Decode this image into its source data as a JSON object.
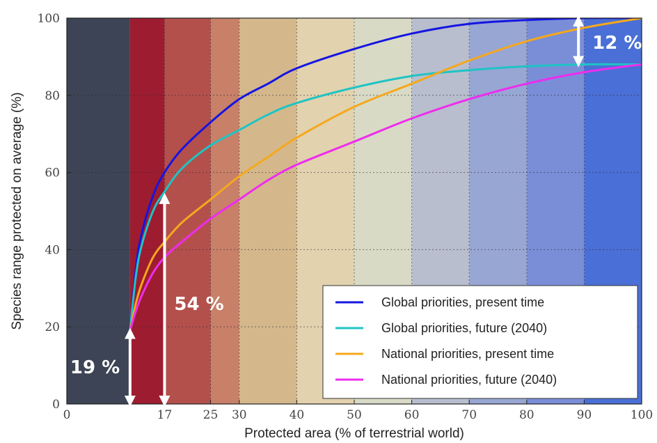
{
  "chart_data": {
    "type": "line",
    "xlabel": "Protected area (% of terrestrial world)",
    "ylabel": "Species range protected on average (%)",
    "xlim": [
      0,
      100
    ],
    "ylim": [
      0,
      100
    ],
    "x_ticks": [
      {
        "value": 0,
        "label": "0"
      },
      {
        "value": 17,
        "label": "17"
      },
      {
        "value": 25,
        "label": "25"
      },
      {
        "value": 30,
        "label": "30"
      },
      {
        "value": 40,
        "label": "40"
      },
      {
        "value": 50,
        "label": "50"
      },
      {
        "value": 60,
        "label": "60"
      },
      {
        "value": 70,
        "label": "70"
      },
      {
        "value": 80,
        "label": "80"
      },
      {
        "value": 90,
        "label": "90"
      },
      {
        "value": 100,
        "label": "100"
      }
    ],
    "y_ticks": [
      {
        "value": 0,
        "label": "0"
      },
      {
        "value": 20,
        "label": "20"
      },
      {
        "value": 40,
        "label": "40"
      },
      {
        "value": 60,
        "label": "60"
      },
      {
        "value": 80,
        "label": "80"
      },
      {
        "value": 100,
        "label": "100"
      }
    ],
    "grid": true,
    "legend_position": "bottom-right",
    "background_bands": [
      {
        "x0": 0,
        "x1": 11,
        "color": "#3d4455"
      },
      {
        "x0": 11,
        "x1": 17,
        "color": "#9e1c30"
      },
      {
        "x0": 17,
        "x1": 25,
        "color": "#b4504c"
      },
      {
        "x0": 25,
        "x1": 30,
        "color": "#c88068"
      },
      {
        "x0": 30,
        "x1": 40,
        "color": "#d4b88c"
      },
      {
        "x0": 40,
        "x1": 50,
        "color": "#e2d2ae"
      },
      {
        "x0": 50,
        "x1": 60,
        "color": "#d8dac6"
      },
      {
        "x0": 60,
        "x1": 70,
        "color": "#b8bece"
      },
      {
        "x0": 70,
        "x1": 80,
        "color": "#98a6d4"
      },
      {
        "x0": 80,
        "x1": 90,
        "color": "#7a8ed8"
      },
      {
        "x0": 90,
        "x1": 100,
        "color": "#4a6fd6"
      }
    ],
    "series": [
      {
        "name": "Global priorities, present time",
        "color": "#1515e0",
        "x": [
          11,
          12,
          13,
          15,
          17,
          20,
          25,
          30,
          35,
          40,
          50,
          60,
          70,
          80,
          90,
          100
        ],
        "y": [
          19,
          35,
          44,
          54,
          60,
          66,
          73,
          79,
          83,
          87,
          92,
          96,
          98.5,
          99.5,
          100,
          100
        ]
      },
      {
        "name": "Global priorities, future (2040)",
        "color": "#1ec4c4",
        "x": [
          11,
          12,
          13,
          15,
          17,
          20,
          25,
          30,
          35,
          40,
          50,
          60,
          70,
          80,
          90,
          100
        ],
        "y": [
          19,
          33,
          41,
          50,
          55,
          61,
          67,
          71,
          75,
          78,
          82,
          85,
          86.5,
          87.5,
          88,
          88
        ]
      },
      {
        "name": "National priorities, present time",
        "color": "#f5a81c",
        "x": [
          11,
          12,
          13,
          15,
          17,
          20,
          25,
          30,
          35,
          40,
          50,
          60,
          70,
          80,
          90,
          100
        ],
        "y": [
          19,
          26,
          31,
          38,
          42,
          47,
          53,
          59,
          64,
          69,
          77,
          83,
          89,
          94,
          97.5,
          100
        ]
      },
      {
        "name": "National priorities, future (2040)",
        "color": "#ee2cee",
        "x": [
          11,
          12,
          13,
          15,
          17,
          20,
          25,
          30,
          35,
          40,
          50,
          60,
          70,
          80,
          90,
          100
        ],
        "y": [
          19,
          24,
          28,
          34,
          38,
          42,
          48,
          53,
          58,
          62,
          68,
          74,
          79,
          83,
          86,
          88
        ]
      }
    ],
    "annotations": [
      {
        "text": "19 %",
        "arrow_x": 11,
        "arrow_y0": 0,
        "arrow_y1": 19
      },
      {
        "text": "54 %",
        "arrow_x": 17,
        "arrow_y0": 0,
        "arrow_y1": 54
      },
      {
        "text": "12 %",
        "arrow_x": 89,
        "arrow_y0": 88,
        "arrow_y1": 100
      }
    ]
  }
}
